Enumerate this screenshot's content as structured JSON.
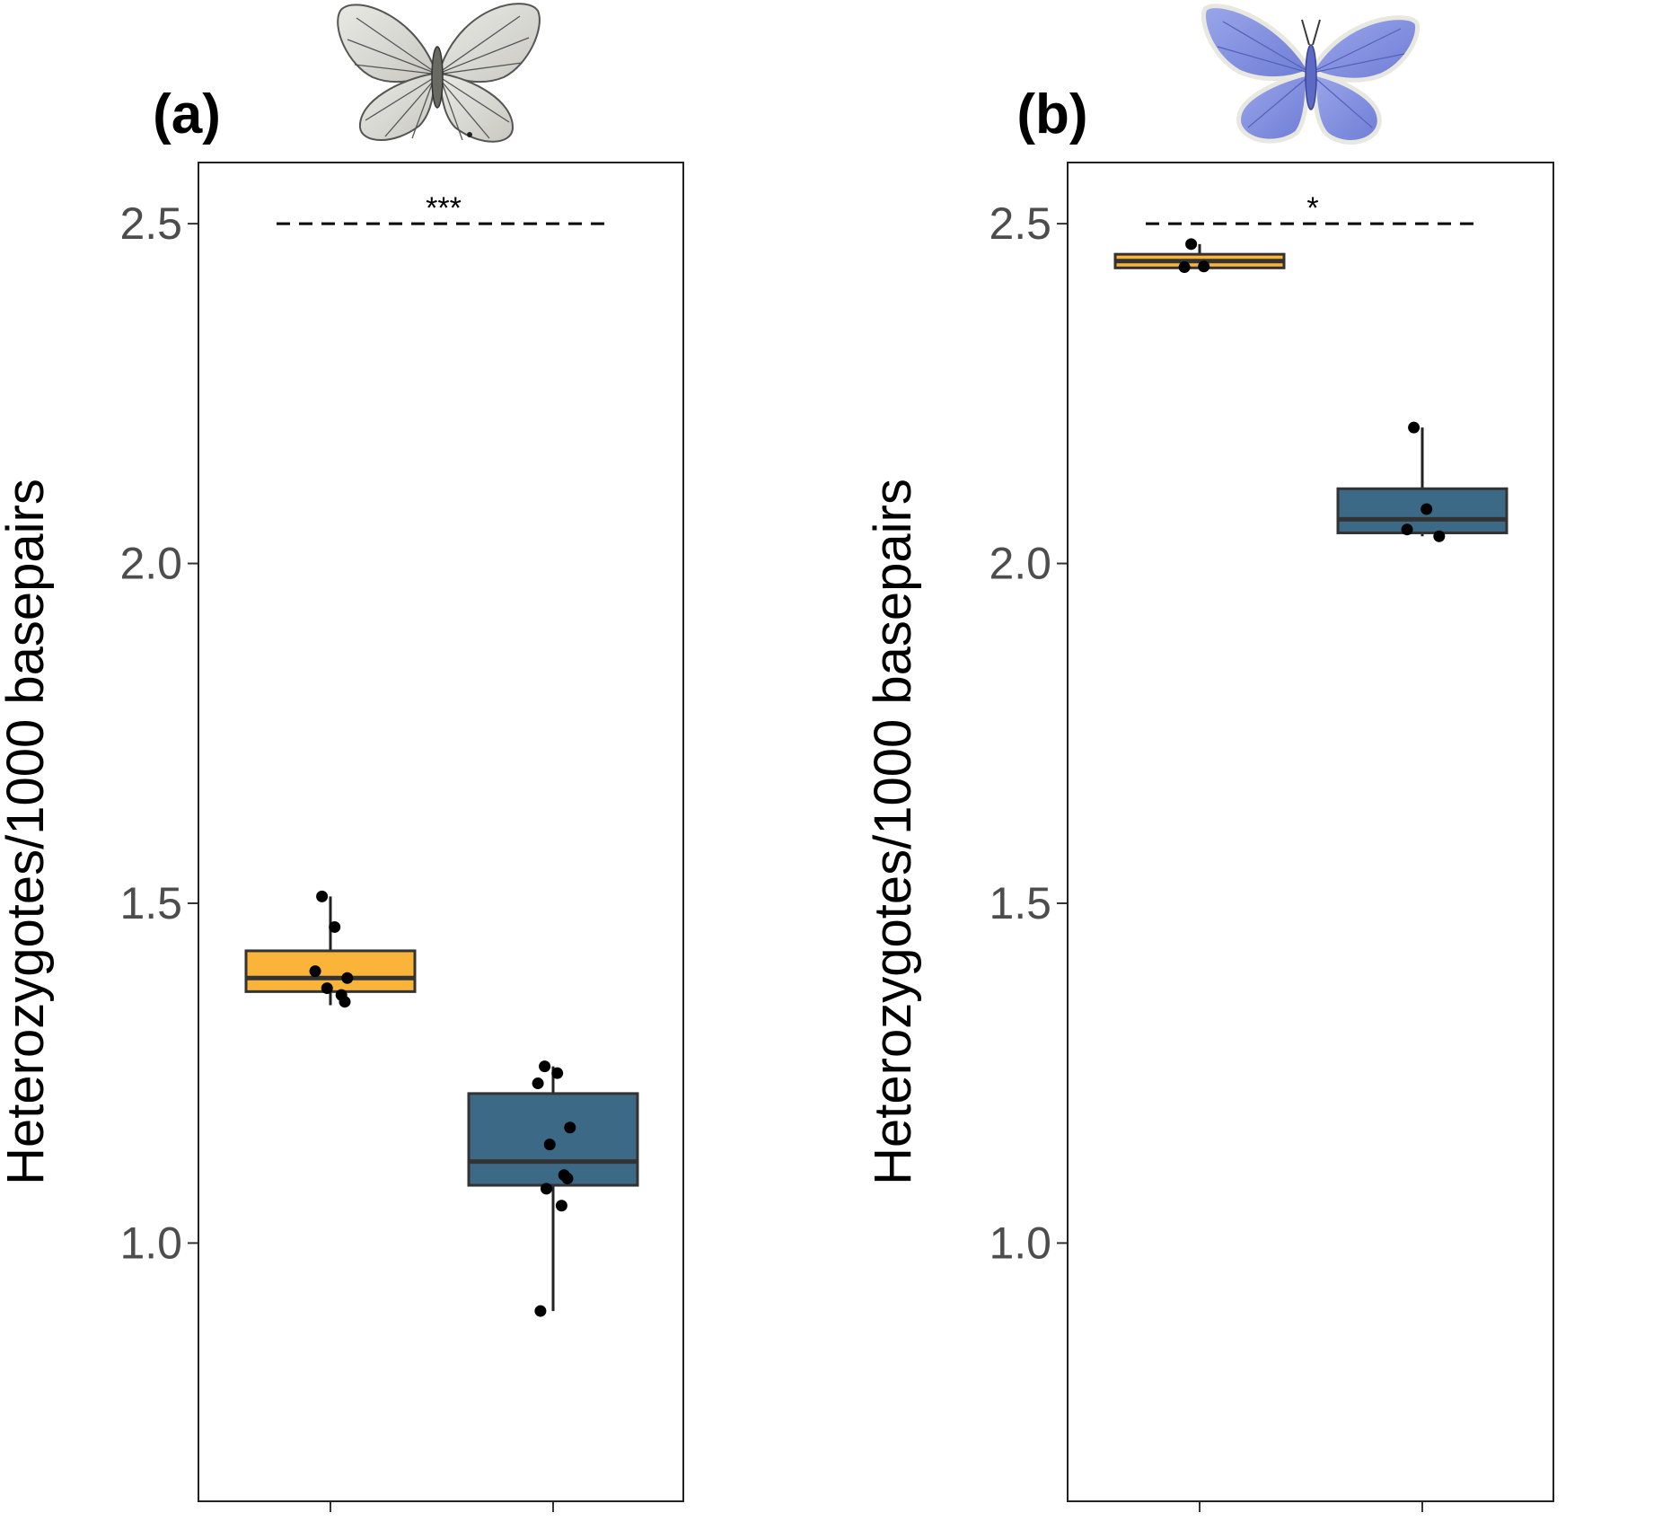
{
  "chart_data": [
    {
      "type": "box",
      "panel_label": "(a)",
      "butterfly_icon": "white-butterfly-icon",
      "ylabel": "Heterozygotes/1000 basepairs",
      "xlabel": "",
      "ylim": [
        0.62,
        2.59
      ],
      "yticks": [
        1.0,
        1.5,
        2.0,
        2.5
      ],
      "ytick_labels": [
        "1.0",
        "1.5",
        "2.0",
        "2.5"
      ],
      "grid": false,
      "significance": {
        "label": "***",
        "y": 2.5
      },
      "series": [
        {
          "color": "#fbb43a",
          "box": {
            "q1": 1.37,
            "median": 1.39,
            "q3": 1.43,
            "whisker_low": 1.35,
            "whisker_high": 1.51
          },
          "points": [
            1.51,
            1.465,
            1.4,
            1.39,
            1.375,
            1.365,
            1.355
          ]
        },
        {
          "color": "#3c6985",
          "box": {
            "q1": 1.085,
            "median": 1.12,
            "q3": 1.22,
            "whisker_low": 0.9,
            "whisker_high": 1.26
          },
          "points": [
            1.26,
            1.25,
            1.235,
            1.17,
            1.145,
            1.1,
            1.095,
            1.08,
            1.055,
            0.9
          ]
        }
      ]
    },
    {
      "type": "box",
      "panel_label": "(b)",
      "butterfly_icon": "blue-butterfly-icon",
      "ylabel": "Heterozygotes/1000 basepairs",
      "xlabel": "",
      "ylim": [
        0.62,
        2.59
      ],
      "yticks": [
        1.0,
        1.5,
        2.0,
        2.5
      ],
      "ytick_labels": [
        "1.0",
        "1.5",
        "2.0",
        "2.5"
      ],
      "grid": false,
      "significance": {
        "label": "*",
        "y": 2.5
      },
      "series": [
        {
          "color": "#fbb43a",
          "box": {
            "q1": 2.435,
            "median": 2.445,
            "q3": 2.455,
            "whisker_low": 2.435,
            "whisker_high": 2.47
          },
          "points": [
            2.47,
            2.437,
            2.436
          ]
        },
        {
          "color": "#3c6985",
          "box": {
            "q1": 2.045,
            "median": 2.065,
            "q3": 2.11,
            "whisker_low": 2.04,
            "whisker_high": 2.2
          },
          "points": [
            2.2,
            2.08,
            2.05,
            2.04
          ]
        }
      ]
    }
  ]
}
